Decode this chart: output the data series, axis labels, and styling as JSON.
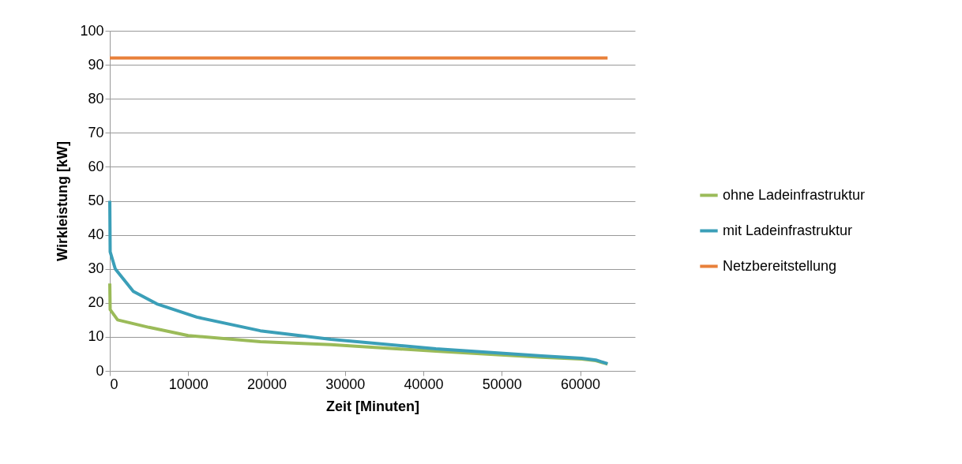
{
  "chart_data": {
    "type": "line",
    "xlabel": "Zeit [Minuten]",
    "ylabel": "Wirkleistung [kW]",
    "xlim": [
      0,
      67000
    ],
    "xticks": [
      0,
      10000,
      20000,
      30000,
      40000,
      50000,
      60000
    ],
    "ylim": [
      0,
      100
    ],
    "yticks": [
      0,
      10,
      20,
      30,
      40,
      50,
      60,
      70,
      80,
      90,
      100
    ],
    "grid": "y",
    "legend": "right",
    "marker": "none",
    "line_style": "solid",
    "series": [
      {
        "name": "ohne Ladeinfrastruktur",
        "color": "#9bbb59",
        "x": [
          0,
          50,
          1000,
          5000,
          10000,
          19200,
          28200,
          41600,
          55100,
          60200,
          62000,
          63500
        ],
        "values": [
          25.7,
          18,
          15,
          12.8,
          10.4,
          8.6,
          7.7,
          5.8,
          4.0,
          3.5,
          3.0,
          2.0
        ]
      },
      {
        "name": "mit Ladeinfrastruktur",
        "color": "#3b9fb8",
        "x": [
          0,
          50,
          700,
          3000,
          6000,
          11100,
          19200,
          28200,
          41600,
          55100,
          60200,
          62000,
          63500
        ],
        "values": [
          50,
          35,
          30,
          23.4,
          19.7,
          15.8,
          11.8,
          9.3,
          6.5,
          4.4,
          3.7,
          3.2,
          2.1
        ]
      },
      {
        "name": "Netzbereitstellung",
        "color": "#e8803a",
        "x": [
          0,
          63500
        ],
        "values": [
          92,
          92
        ]
      }
    ]
  }
}
